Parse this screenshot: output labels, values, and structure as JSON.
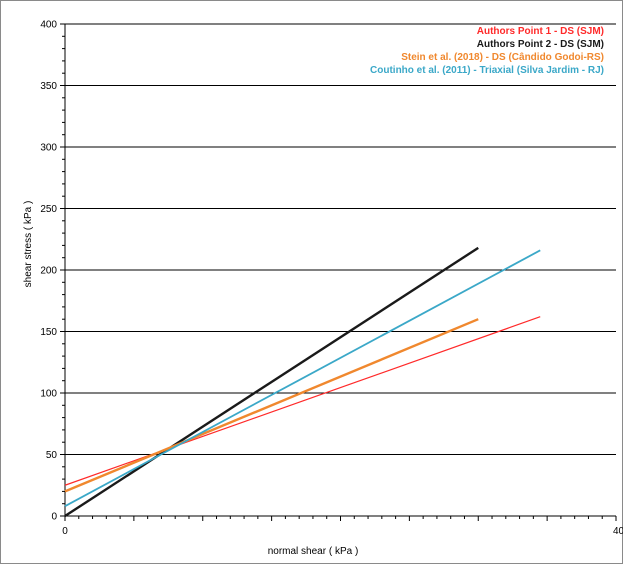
{
  "chart_data": {
    "type": "line",
    "title": "",
    "xlabel": "normal shear ( kPa )",
    "ylabel": "shear stress ( kPa )",
    "xlim": [
      0,
      400
    ],
    "ylim": [
      0,
      400
    ],
    "x_ticks": [
      "0",
      "400"
    ],
    "y_ticks": [
      "0",
      "50",
      "100",
      "150",
      "200",
      "250",
      "300",
      "350",
      "400"
    ],
    "grid": "horizontal major",
    "legend_position": "top-right",
    "series": [
      {
        "name": "Authors Point 1 - DS  (SJM)",
        "color": "#ff2a2a",
        "width": 1.2,
        "x": [
          0,
          345
        ],
        "y": [
          25,
          162
        ]
      },
      {
        "name": "Authors Point 2 - DS  (SJM)",
        "color": "#1a1a1a",
        "width": 2.4,
        "x": [
          0,
          300
        ],
        "y": [
          0,
          218
        ]
      },
      {
        "name": "Stein et al. (2018) - DS  (Cândido Godoi-RS)",
        "color": "#f0882e",
        "width": 2.4,
        "x": [
          0,
          300
        ],
        "y": [
          20,
          160
        ]
      },
      {
        "name": "Coutinho et al. (2011) - Triaxial  (Silva Jardim - RJ)",
        "color": "#3ba8c8",
        "width": 1.8,
        "x": [
          0,
          345
        ],
        "y": [
          8,
          216
        ]
      }
    ]
  }
}
